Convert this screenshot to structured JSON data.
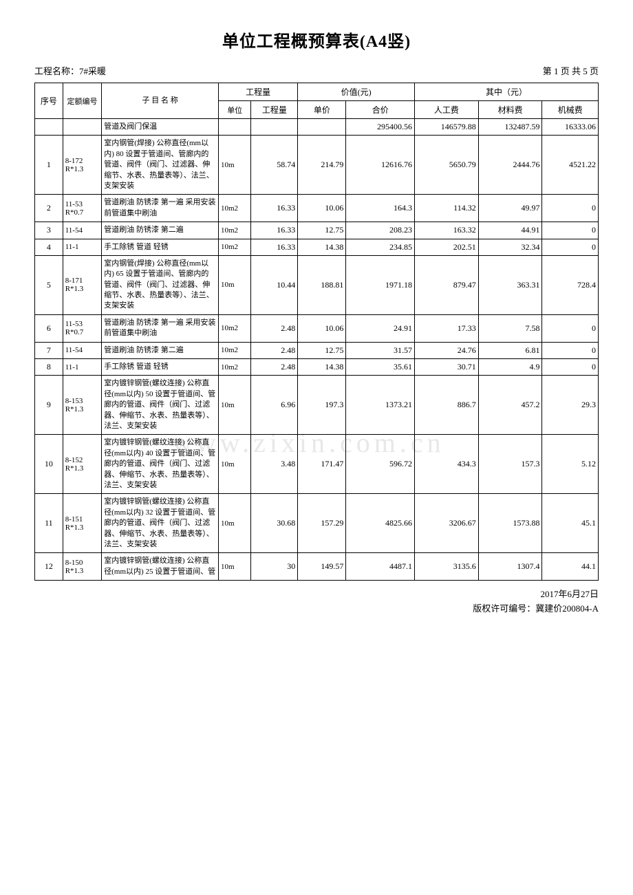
{
  "title": "单位工程概预算表(A4竖)",
  "project_label": "工程名称：",
  "project_name": "7#采暖",
  "page_info": "第  1  页  共  5  页",
  "headers": {
    "seq": "序号",
    "code": "定额编号",
    "name": "子 目 名 称",
    "qty_group": "工程量",
    "unit": "单位",
    "qty": "工程量",
    "value_group": "价值(元)",
    "price": "单价",
    "total": "合价",
    "breakdown_group": "其中（元）",
    "labor": "人工费",
    "material": "材料费",
    "machine": "机械费"
  },
  "summary_row": {
    "seq": "",
    "code": "",
    "name": "管道及阀门保温",
    "unit": "",
    "qty": "",
    "price": "",
    "total": "295400.56",
    "labor": "146579.88",
    "material": "132487.59",
    "machine": "16333.06"
  },
  "rows": [
    {
      "seq": "1",
      "code": "8-172 R*1.3",
      "name": "室内钢管(焊接) 公称直径(mm以内) 80 设置于管道间、管廊内的管道、阀件（阀门、过滤器、伸缩节、水表、热量表等）、法兰、支架安装",
      "unit": "10m",
      "qty": "58.74",
      "price": "214.79",
      "total": "12616.76",
      "labor": "5650.79",
      "material": "2444.76",
      "machine": "4521.22"
    },
    {
      "seq": "2",
      "code": "11-53 R*0.7",
      "name": "管道刷油 防锈漆 第一遍 采用安装前管道集中刷油",
      "unit": "10m2",
      "qty": "16.33",
      "price": "10.06",
      "total": "164.3",
      "labor": "114.32",
      "material": "49.97",
      "machine": "0"
    },
    {
      "seq": "3",
      "code": "11-54",
      "name": "管道刷油 防锈漆 第二遍",
      "unit": "10m2",
      "qty": "16.33",
      "price": "12.75",
      "total": "208.23",
      "labor": "163.32",
      "material": "44.91",
      "machine": "0"
    },
    {
      "seq": "4",
      "code": "11-1",
      "name": "手工除锈 管道 轻锈",
      "unit": "10m2",
      "qty": "16.33",
      "price": "14.38",
      "total": "234.85",
      "labor": "202.51",
      "material": "32.34",
      "machine": "0"
    },
    {
      "seq": "5",
      "code": "8-171 R*1.3",
      "name": "室内钢管(焊接) 公称直径(mm以内) 65  设置于管道间、管廊内的管道、阀件（阀门、过滤器、伸缩节、水表、热量表等）、法兰、支架安装",
      "unit": "10m",
      "qty": "10.44",
      "price": "188.81",
      "total": "1971.18",
      "labor": "879.47",
      "material": "363.31",
      "machine": "728.4"
    },
    {
      "seq": "6",
      "code": "11-53 R*0.7",
      "name": "管道刷油 防锈漆 第一遍 采用安装前管道集中刷油",
      "unit": "10m2",
      "qty": "2.48",
      "price": "10.06",
      "total": "24.91",
      "labor": "17.33",
      "material": "7.58",
      "machine": "0"
    },
    {
      "seq": "7",
      "code": "11-54",
      "name": "管道刷油 防锈漆 第二遍",
      "unit": "10m2",
      "qty": "2.48",
      "price": "12.75",
      "total": "31.57",
      "labor": "24.76",
      "material": "6.81",
      "machine": "0"
    },
    {
      "seq": "8",
      "code": "11-1",
      "name": "手工除锈 管道 轻锈",
      "unit": "10m2",
      "qty": "2.48",
      "price": "14.38",
      "total": "35.61",
      "labor": "30.71",
      "material": "4.9",
      "machine": "0"
    },
    {
      "seq": "9",
      "code": "8-153 R*1.3",
      "name": "室内镀锌钢管(螺纹连接) 公称直径(mm以内) 50 设置于管道间、管廊内的管道、阀件（阀门、过滤器、伸缩节、水表、热量表等）、法兰、支架安装",
      "unit": "10m",
      "qty": "6.96",
      "price": "197.3",
      "total": "1373.21",
      "labor": "886.7",
      "material": "457.2",
      "machine": "29.3"
    },
    {
      "seq": "10",
      "code": "8-152 R*1.3",
      "name": "室内镀锌钢管(螺纹连接) 公称直径(mm以内) 40 设置于管道间、管廊内的管道、阀件（阀门、过滤器、伸缩节、水表、热量表等）、法兰、支架安装",
      "unit": "10m",
      "qty": "3.48",
      "price": "171.47",
      "total": "596.72",
      "labor": "434.3",
      "material": "157.3",
      "machine": "5.12"
    },
    {
      "seq": "11",
      "code": "8-151 R*1.3",
      "name": "室内镀锌钢管(螺纹连接) 公称直径(mm以内) 32 设置于管道间、管廊内的管道、阀件（阀门、过滤器、伸缩节、水表、热量表等）、法兰、支架安装",
      "unit": "10m",
      "qty": "30.68",
      "price": "157.29",
      "total": "4825.66",
      "labor": "3206.67",
      "material": "1573.88",
      "machine": "45.1"
    },
    {
      "seq": "12",
      "code": "8-150 R*1.3",
      "name": "室内镀锌钢管(螺纹连接) 公称直径(mm以内) 25 设置于管道间、管",
      "unit": "10m",
      "qty": "30",
      "price": "149.57",
      "total": "4487.1",
      "labor": "3135.6",
      "material": "1307.4",
      "machine": "44.1"
    }
  ],
  "footer_date": "2017年6月27日",
  "footer_license": "版权许可编号：冀建价200804-A",
  "watermark": "www.zixin.com.cn"
}
